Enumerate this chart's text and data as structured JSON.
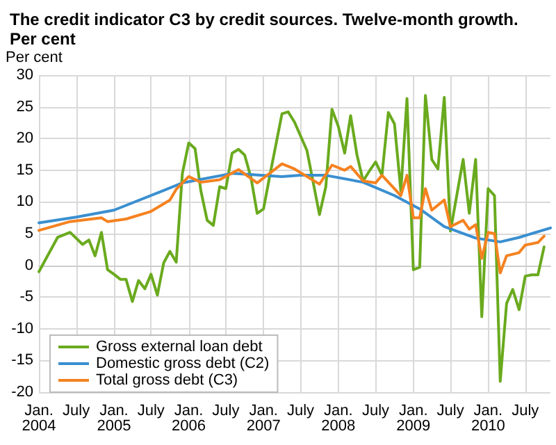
{
  "chart_data": {
    "type": "line",
    "title": "The credit indicator C3 by credit sources. Twelve-month growth. Per cent",
    "ylabel": "Per cent",
    "xlim": [
      "2004-01",
      "2010-11"
    ],
    "xticks": [
      {
        "value": "2004-01",
        "label": "Jan.\n2004"
      },
      {
        "value": "2004-07",
        "label": "July"
      },
      {
        "value": "2005-01",
        "label": "Jan.\n2005"
      },
      {
        "value": "2005-07",
        "label": "July"
      },
      {
        "value": "2006-01",
        "label": "Jan.\n2006"
      },
      {
        "value": "2006-07",
        "label": "July"
      },
      {
        "value": "2007-01",
        "label": "Jan.\n2007"
      },
      {
        "value": "2007-07",
        "label": "July"
      },
      {
        "value": "2008-01",
        "label": "Jan.\n2008"
      },
      {
        "value": "2008-07",
        "label": "July"
      },
      {
        "value": "2009-01",
        "label": "Jan.\n2009"
      },
      {
        "value": "2009-07",
        "label": "July"
      },
      {
        "value": "2010-01",
        "label": "Jan.\n2010"
      },
      {
        "value": "2010-07",
        "label": "July"
      }
    ],
    "ylim": [
      -20,
      30
    ],
    "yticks": [
      -20,
      -15,
      -10,
      -5,
      0,
      5,
      10,
      15,
      20,
      25,
      30
    ],
    "grid": true,
    "legend": "bottom left",
    "line_style": "solid",
    "series": [
      {
        "name": "Gross external loan debt",
        "color": "#6aaa1e",
        "x": [
          "2004-01",
          "2004-04",
          "2004-06",
          "2004-08",
          "2004-09",
          "2004-10",
          "2004-11",
          "2004-12",
          "2005-01",
          "2005-02",
          "2005-03",
          "2005-04",
          "2005-05",
          "2005-06",
          "2005-07",
          "2005-08",
          "2005-09",
          "2005-10",
          "2005-11",
          "2005-12",
          "2006-01",
          "2006-02",
          "2006-03",
          "2006-04",
          "2006-05",
          "2006-06",
          "2006-07",
          "2006-08",
          "2006-09",
          "2006-10",
          "2006-11",
          "2006-12",
          "2007-01",
          "2007-02",
          "2007-04",
          "2007-05",
          "2007-06",
          "2007-08",
          "2007-10",
          "2007-11",
          "2007-12",
          "2008-01",
          "2008-02",
          "2008-03",
          "2008-04",
          "2008-05",
          "2008-06",
          "2008-07",
          "2008-08",
          "2008-09",
          "2008-10",
          "2008-11",
          "2008-12",
          "2009-01",
          "2009-02",
          "2009-03",
          "2009-04",
          "2009-05",
          "2009-06",
          "2009-07",
          "2009-09",
          "2009-10",
          "2009-11",
          "2009-12",
          "2010-01",
          "2010-02",
          "2010-03",
          "2010-04",
          "2010-05",
          "2010-06",
          "2010-07",
          "2010-08",
          "2010-09",
          "2010-10"
        ],
        "values": [
          -1,
          4.4,
          5.2,
          3.3,
          4.0,
          1.5,
          5.2,
          -0.7,
          -1.4,
          -2.2,
          -2.2,
          -5.7,
          -2.4,
          -3.7,
          -1.4,
          -4.7,
          0.4,
          2.2,
          0.5,
          14.5,
          19.3,
          18.4,
          11.8,
          7.1,
          6.3,
          12.4,
          12.1,
          17.7,
          18.3,
          17.4,
          13.8,
          8.2,
          8.9,
          14.2,
          23.9,
          24.2,
          22.6,
          18.1,
          8.0,
          12.4,
          24.6,
          21.9,
          17.7,
          23.6,
          17.4,
          13.3,
          14.9,
          16.3,
          14.2,
          24.1,
          22.3,
          11.7,
          26.3,
          -0.7,
          -0.3,
          26.8,
          16.7,
          15.2,
          26.5,
          5.4,
          16.7,
          8.2,
          16.7,
          -8.1,
          12.1,
          11.0,
          -18.3,
          -6.0,
          -3.8,
          -7.0,
          -1.7,
          -1.5,
          -1.5,
          2.9
        ]
      },
      {
        "name": "Domestic gross debt (C2)",
        "color": "#3a8fd0",
        "x": [
          "2004-01",
          "2004-07",
          "2005-01",
          "2005-09",
          "2005-12",
          "2006-08",
          "2007-04",
          "2007-07",
          "2007-11",
          "2008-05",
          "2008-10",
          "2009-02",
          "2009-06",
          "2009-11",
          "2010-03",
          "2010-06",
          "2010-11"
        ],
        "values": [
          6.7,
          7.6,
          8.7,
          11.8,
          13.0,
          14.5,
          14.0,
          14.2,
          14.2,
          13.1,
          11.0,
          8.9,
          6.1,
          4.3,
          3.7,
          4.4,
          5.9
        ]
      },
      {
        "name": "Total gross debt (C3)",
        "color": "#f58220",
        "x": [
          "2004-01",
          "2004-06",
          "2004-11",
          "2004-12",
          "2005-03",
          "2005-07",
          "2005-10",
          "2005-11",
          "2006-01",
          "2006-03",
          "2006-06",
          "2006-09",
          "2006-12",
          "2007-04",
          "2007-06",
          "2007-10",
          "2007-12",
          "2008-02",
          "2008-03",
          "2008-05",
          "2008-07",
          "2008-08",
          "2008-11",
          "2008-12",
          "2009-01",
          "2009-02",
          "2009-03",
          "2009-04",
          "2009-06",
          "2009-07",
          "2009-09",
          "2009-10",
          "2009-11",
          "2009-12",
          "2010-01",
          "2010-02",
          "2010-03",
          "2010-04",
          "2010-06",
          "2010-07",
          "2010-09",
          "2010-10"
        ],
        "values": [
          5.5,
          6.9,
          7.5,
          6.9,
          7.3,
          8.5,
          10.3,
          12.0,
          14.0,
          13.1,
          13.5,
          15.1,
          13.0,
          16.0,
          15.2,
          12.8,
          15.8,
          15.0,
          15.6,
          13.3,
          13.0,
          14.2,
          11.0,
          14.2,
          7.5,
          7.5,
          12.1,
          8.7,
          10.3,
          6.1,
          7.1,
          5.7,
          6.4,
          1.1,
          5.2,
          5.0,
          -1.2,
          1.5,
          2.0,
          3.2,
          3.6,
          4.6
        ]
      }
    ]
  }
}
